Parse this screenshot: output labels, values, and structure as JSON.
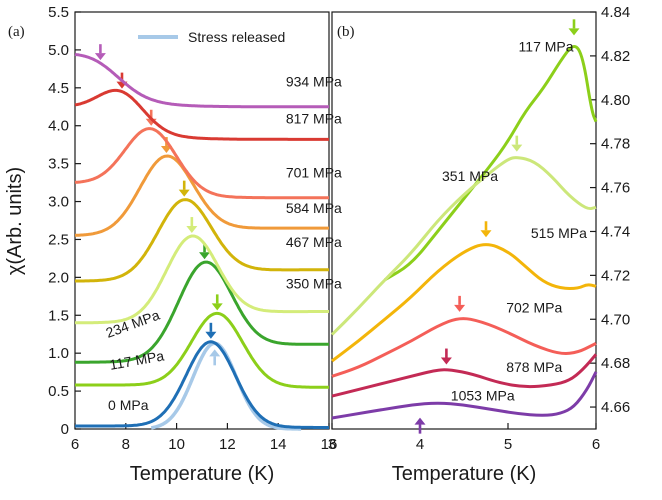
{
  "chart_data": [
    {
      "panel": "(a)",
      "type": "line",
      "xlabel": "Temperature (K)",
      "ylabel": "χ(Arb. units)",
      "xlim": [
        6,
        16
      ],
      "ylim": [
        0,
        5.5
      ],
      "xticks": [
        6,
        8,
        10,
        12,
        14,
        16
      ],
      "yticks": [
        0,
        0.5,
        1.0,
        1.5,
        2.0,
        2.5,
        3.0,
        3.5,
        4.0,
        4.5,
        5.0,
        5.5
      ],
      "ytick_labels": [
        "0",
        "0.5",
        "1.0",
        "1.5",
        "2.0",
        "2.5",
        "3.0",
        "3.5",
        "4.0",
        "4.5",
        "5.0",
        "5.5"
      ],
      "legend": {
        "position": "top-right",
        "entries": [
          {
            "label": "Stress released",
            "color": "#a7c9e8"
          }
        ]
      },
      "series": [
        {
          "name": "0 MPa",
          "color": "#1f6fb5",
          "base": 0.04,
          "peak_T": 11.35,
          "height": 1.12,
          "width": 1.25,
          "end": 0.02,
          "arrow": "down"
        },
        {
          "name": "117 MPa",
          "color": "#8ccf1a",
          "base": 0.58,
          "peak_T": 11.6,
          "height": 0.96,
          "width": 1.3,
          "end": 0.55,
          "arrow": "down"
        },
        {
          "name": "234 MPa",
          "color": "#3aa52d",
          "base": 0.88,
          "peak_T": 11.1,
          "height": 1.2,
          "width": 1.35,
          "end": 1.12,
          "arrow": "down"
        },
        {
          "name": "350 MPa",
          "color": "#d4ec7a",
          "base": 1.4,
          "peak_T": 10.6,
          "height": 1.07,
          "width": 1.3,
          "end": 1.55,
          "arrow": "down"
        },
        {
          "name": "467 MPa",
          "color": "#d2b40a",
          "base": 1.95,
          "peak_T": 10.3,
          "height": 1.0,
          "width": 1.35,
          "end": 2.1,
          "arrow": "down"
        },
        {
          "name": "584 MPa",
          "color": "#f09a3a",
          "base": 2.55,
          "peak_T": 9.6,
          "height": 1.0,
          "width": 1.35,
          "end": 2.65,
          "arrow": "down"
        },
        {
          "name": "701 MPa",
          "color": "#f4735a",
          "base": 3.25,
          "peak_T": 9.0,
          "height": 0.81,
          "width": 1.3,
          "end": 3.05,
          "arrow": "down"
        },
        {
          "name": "817 MPa",
          "color": "#d93a32",
          "base": 4.28,
          "peak_T": 7.85,
          "height": 0.4,
          "width": 1.15,
          "end": 3.82,
          "arrow": "down"
        },
        {
          "name": "934 MPa",
          "color": "#b55cb8",
          "base": 5.02,
          "peak_T": 7.0,
          "height": 0.19,
          "width": 1.25,
          "end": 4.25,
          "arrow": "down"
        },
        {
          "name": "Stress released",
          "color": "#a7c9e8",
          "base": 0.0,
          "peak_T": 11.5,
          "height": 1.13,
          "width": 1.1,
          "end": 0.0,
          "arrow": "up"
        }
      ],
      "curve_labels": [
        {
          "text": "934 MPa",
          "T": 14.3,
          "y": 4.52
        },
        {
          "text": "817 MPa",
          "T": 14.3,
          "y": 4.03
        },
        {
          "text": "701 MPa",
          "T": 14.3,
          "y": 3.32
        },
        {
          "text": "584 MPa",
          "T": 14.3,
          "y": 2.85
        },
        {
          "text": "467 MPa",
          "T": 14.3,
          "y": 2.4
        },
        {
          "text": "350 MPa",
          "T": 14.3,
          "y": 1.85
        },
        {
          "text": "234 MPa",
          "T": 7.3,
          "y": 1.2,
          "rotate": -20
        },
        {
          "text": "117 MPa",
          "T": 7.4,
          "y": 0.78,
          "rotate": -10
        },
        {
          "text": "0 MPa",
          "T": 7.3,
          "y": 0.25
        }
      ]
    },
    {
      "panel": "(b)",
      "type": "line",
      "xlabel": "Temperature (K)",
      "xlim": [
        3,
        6
      ],
      "ylim": [
        4.65,
        4.84
      ],
      "xticks": [
        3,
        4,
        5,
        6
      ],
      "yticks": [
        4.66,
        4.68,
        4.7,
        4.72,
        4.74,
        4.76,
        4.78,
        4.8,
        4.82,
        4.84
      ],
      "ytick_labels": [
        "4.66",
        "4.68",
        "4.70",
        "4.72",
        "4.74",
        "4.76",
        "4.78",
        "4.80",
        "4.82",
        "4.84"
      ],
      "series": [
        {
          "name": "117 MPa",
          "color": "#8ccf1a",
          "points": [
            [
              3.6,
              4.718
            ],
            [
              3.9,
              4.725
            ],
            [
              4.2,
              4.74
            ],
            [
              4.5,
              4.755
            ],
            [
              4.8,
              4.77
            ],
            [
              5.0,
              4.781
            ],
            [
              5.2,
              4.795
            ],
            [
              5.4,
              4.805
            ],
            [
              5.6,
              4.818
            ],
            [
              5.75,
              4.826
            ],
            [
              5.85,
              4.82
            ],
            [
              5.95,
              4.795
            ],
            [
              6.0,
              4.79
            ]
          ],
          "arrow_T": 5.75,
          "arrow_y": 4.828
        },
        {
          "name": "351 MPa",
          "color": "#cce77a",
          "points": [
            [
              3.0,
              4.693
            ],
            [
              3.3,
              4.705
            ],
            [
              3.6,
              4.718
            ],
            [
              3.9,
              4.73
            ],
            [
              4.2,
              4.745
            ],
            [
              4.5,
              4.757
            ],
            [
              4.8,
              4.767
            ],
            [
              5.0,
              4.773
            ],
            [
              5.1,
              4.774
            ],
            [
              5.3,
              4.772
            ],
            [
              5.5,
              4.765
            ],
            [
              5.7,
              4.756
            ],
            [
              5.9,
              4.75
            ],
            [
              6.0,
              4.751
            ]
          ],
          "arrow_T": 5.1,
          "arrow_y": 4.775
        },
        {
          "name": "515 MPa",
          "color": "#f3b50a",
          "points": [
            [
              3.0,
              4.681
            ],
            [
              3.3,
              4.69
            ],
            [
              3.6,
              4.7
            ],
            [
              3.9,
              4.71
            ],
            [
              4.2,
              4.722
            ],
            [
              4.5,
              4.731
            ],
            [
              4.75,
              4.735
            ],
            [
              5.0,
              4.731
            ],
            [
              5.2,
              4.724
            ],
            [
              5.4,
              4.717
            ],
            [
              5.6,
              4.714
            ],
            [
              5.8,
              4.714
            ],
            [
              5.9,
              4.716
            ],
            [
              6.0,
              4.715
            ]
          ],
          "arrow_T": 4.75,
          "arrow_y": 4.736
        },
        {
          "name": "702 MPa",
          "color": "#f45e58",
          "points": [
            [
              3.0,
              4.674
            ],
            [
              3.3,
              4.678
            ],
            [
              3.6,
              4.684
            ],
            [
              3.9,
              4.69
            ],
            [
              4.2,
              4.697
            ],
            [
              4.45,
              4.701
            ],
            [
              4.7,
              4.699
            ],
            [
              5.0,
              4.694
            ],
            [
              5.3,
              4.688
            ],
            [
              5.6,
              4.684
            ],
            [
              5.8,
              4.685
            ],
            [
              5.95,
              4.688
            ],
            [
              6.0,
              4.689
            ]
          ],
          "arrow_T": 4.45,
          "arrow_y": 4.702
        },
        {
          "name": "878 MPa",
          "color": "#c32a55",
          "points": [
            [
              3.0,
              4.665
            ],
            [
              3.3,
              4.668
            ],
            [
              3.6,
              4.671
            ],
            [
              3.9,
              4.674
            ],
            [
              4.2,
              4.677
            ],
            [
              4.35,
              4.677
            ],
            [
              4.6,
              4.675
            ],
            [
              4.9,
              4.671
            ],
            [
              5.2,
              4.669
            ],
            [
              5.5,
              4.67
            ],
            [
              5.7,
              4.672
            ],
            [
              5.85,
              4.677
            ],
            [
              6.0,
              4.684
            ]
          ],
          "arrow_T": 4.3,
          "arrow_y": 4.678
        },
        {
          "name": "1053 MPa",
          "color": "#7d3ca8",
          "points": [
            [
              3.0,
              4.655
            ],
            [
              3.3,
              4.657
            ],
            [
              3.6,
              4.659
            ],
            [
              3.9,
              4.661
            ],
            [
              4.2,
              4.662
            ],
            [
              4.5,
              4.661
            ],
            [
              4.8,
              4.659
            ],
            [
              5.1,
              4.657
            ],
            [
              5.4,
              4.656
            ],
            [
              5.6,
              4.657
            ],
            [
              5.75,
              4.66
            ],
            [
              5.9,
              4.668
            ],
            [
              6.0,
              4.676
            ]
          ],
          "arrow_T": 4.0,
          "arrow_y": 4.657,
          "arrow": "up"
        }
      ],
      "curve_labels": [
        {
          "text": "117 MPa",
          "T": 5.12,
          "y": 4.822
        },
        {
          "text": "351 MPa",
          "T": 4.25,
          "y": 4.763
        },
        {
          "text": "515 MPa",
          "T": 5.26,
          "y": 4.737
        },
        {
          "text": "702 MPa",
          "T": 4.98,
          "y": 4.703
        },
        {
          "text": "878 MPa",
          "T": 4.98,
          "y": 4.676
        },
        {
          "text": "1053 MPa",
          "T": 4.35,
          "y": 4.663
        }
      ]
    }
  ]
}
